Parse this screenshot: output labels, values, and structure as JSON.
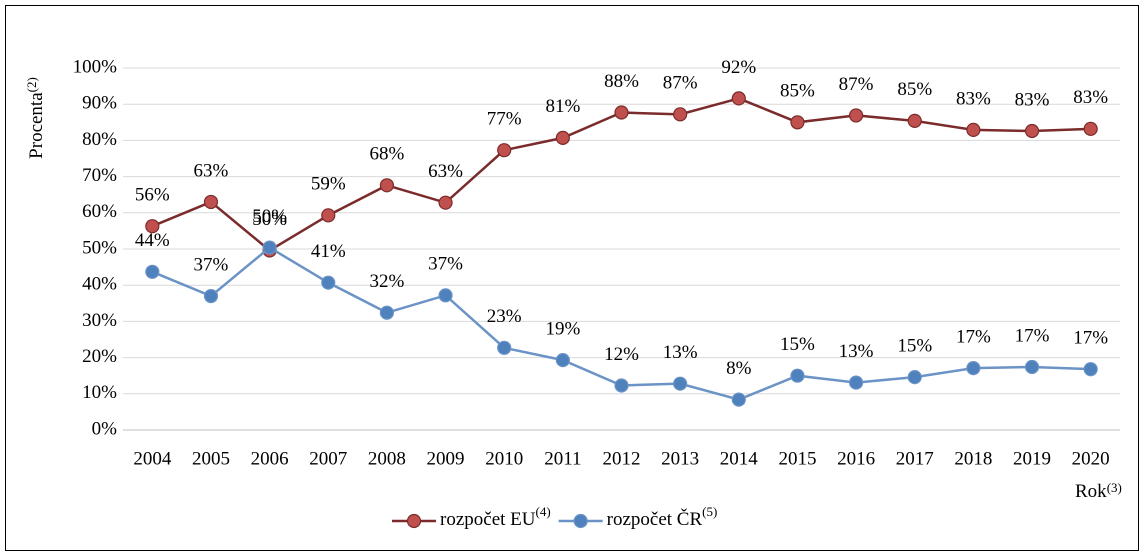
{
  "chart_data": {
    "type": "line",
    "y_label": "Procenta",
    "y_label_note": "(2)",
    "x_label": "Rok",
    "x_label_note": "(3)",
    "categories": [
      "2004",
      "2005",
      "2006",
      "2007",
      "2008",
      "2009",
      "2010",
      "2011",
      "2012",
      "2013",
      "2014",
      "2015",
      "2016",
      "2017",
      "2018",
      "2019",
      "2020"
    ],
    "series": [
      {
        "name": "rozpočet EU",
        "name_note": "(4)",
        "color": "#7b2b2b",
        "marker_color": "#c0504d",
        "values": [
          56.3,
          63.0,
          49.6,
          59.3,
          67.6,
          62.8,
          77.3,
          80.7,
          87.7,
          87.2,
          91.6,
          85.0,
          86.9,
          85.4,
          82.9,
          82.6,
          83.2
        ],
        "value_labels": [
          "56%",
          "63%",
          "50%",
          "59%",
          "68%",
          "63%",
          "77%",
          "81%",
          "88%",
          "87%",
          "92%",
          "85%",
          "87%",
          "85%",
          "83%",
          "83%",
          "83%"
        ]
      },
      {
        "name": "rozpočet ČR",
        "name_note": "(5)",
        "color": "#6b93c6",
        "marker_color": "#4f81bd",
        "values": [
          43.7,
          37.0,
          50.4,
          40.7,
          32.4,
          37.2,
          22.7,
          19.3,
          12.3,
          12.8,
          8.4,
          15.0,
          13.1,
          14.6,
          17.1,
          17.4,
          16.8
        ],
        "value_labels": [
          "44%",
          "37%",
          "50%",
          "41%",
          "32%",
          "37%",
          "23%",
          "19%",
          "12%",
          "13%",
          "8%",
          "15%",
          "13%",
          "15%",
          "17%",
          "17%",
          "17%"
        ]
      }
    ],
    "ylim": [
      0,
      100
    ],
    "yticks": [
      {
        "value": 0,
        "label": "0%"
      },
      {
        "value": 10,
        "label": "10%"
      },
      {
        "value": 20,
        "label": "20%"
      },
      {
        "value": 30,
        "label": "30%"
      },
      {
        "value": 40,
        "label": "40%"
      },
      {
        "value": 50,
        "label": "50%"
      },
      {
        "value": 60,
        "label": "60%"
      },
      {
        "value": 70,
        "label": "70%"
      },
      {
        "value": 80,
        "label": "80%"
      },
      {
        "value": 90,
        "label": "90%"
      },
      {
        "value": 100,
        "label": "100%"
      }
    ],
    "grid": true,
    "legend": "bottom"
  }
}
